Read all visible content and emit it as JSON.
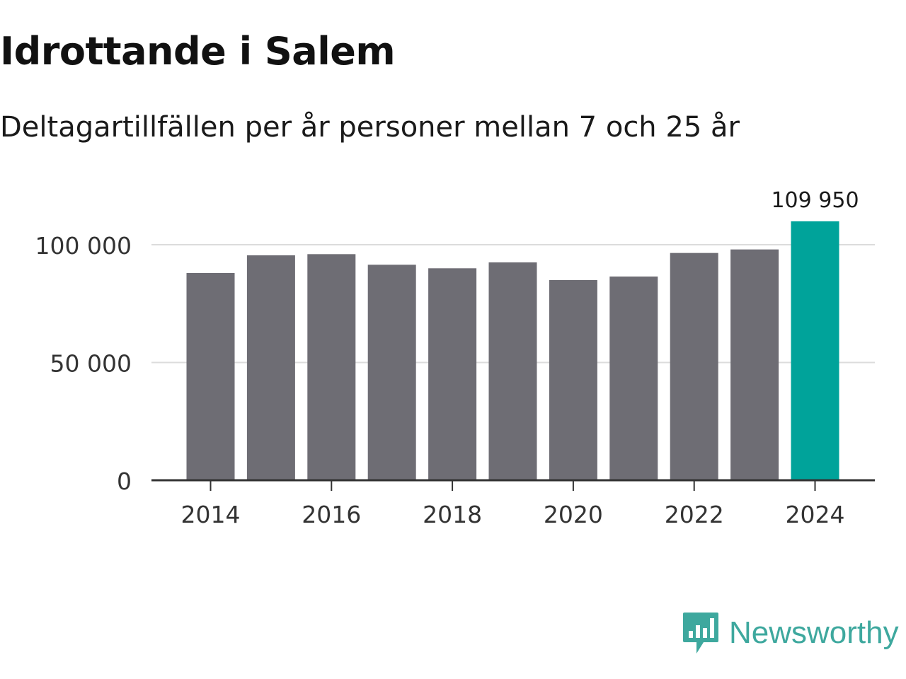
{
  "header": {
    "title": "Idrottande i Salem",
    "subtitle": "Deltagartillfällen per år personer mellan 7 och 25 år"
  },
  "chart_data": {
    "type": "bar",
    "categories": [
      "2014",
      "2015",
      "2016",
      "2017",
      "2018",
      "2019",
      "2020",
      "2021",
      "2022",
      "2023",
      "2024"
    ],
    "values": [
      88000,
      95500,
      96000,
      91500,
      90000,
      92500,
      85000,
      86500,
      96500,
      98000,
      109950
    ],
    "title": "Idrottande i Salem",
    "subtitle": "Deltagartillfällen per år personer mellan 7 och 25 år",
    "xlabel": "",
    "ylabel": "",
    "ylim": [
      0,
      110000
    ],
    "yticks": [
      0,
      50000,
      100000
    ],
    "ytick_labels": [
      "0",
      "50 000",
      "100 000"
    ],
    "xticks": [
      "2014",
      "2016",
      "2018",
      "2020",
      "2022",
      "2024"
    ],
    "highlight_index": 10,
    "highlight_label": "109 950",
    "grid": true,
    "colors": {
      "bar": "#6e6d74",
      "highlight": "#00a39a",
      "grid": "#dcdcdc",
      "axis": "#333333",
      "text": "#333333"
    }
  },
  "logo": {
    "text": "Newsworthy",
    "icon": "newsworthy-chart-icon",
    "color": "#3ea89e"
  }
}
